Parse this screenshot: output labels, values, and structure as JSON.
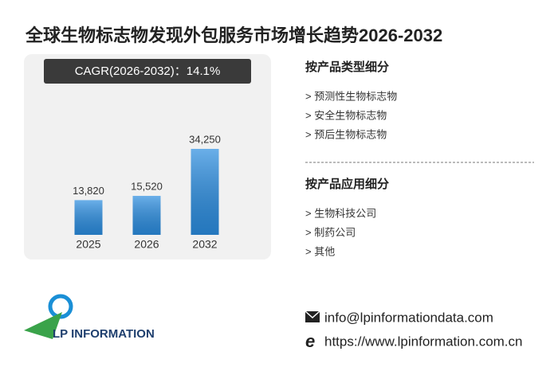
{
  "title": "全球生物标志物发现外包服务市场增长趋势2026-2032",
  "chart_data": {
    "type": "bar",
    "subtitle": "CAGR(2026-2032)：14.1%",
    "categories": [
      "2025",
      "2026",
      "2032"
    ],
    "values": [
      13820,
      15520,
      34250
    ],
    "value_labels": [
      "13,820",
      "15,520",
      "34,250"
    ],
    "color": "#2b8de0"
  },
  "segments": [
    {
      "heading": "按产品类型细分",
      "items": [
        "> 预测性生物标志物",
        "> 安全生物标志物",
        "> 预后生物标志物"
      ]
    },
    {
      "heading": "按产品应用细分",
      "items": [
        "> 生物科技公司",
        "> 制药公司",
        "> 其他"
      ]
    }
  ],
  "contact": {
    "email": "info@lpinformationdata.com",
    "website": "https://www.lpinformation.com.cn"
  },
  "logo": "LP INFORMATION"
}
